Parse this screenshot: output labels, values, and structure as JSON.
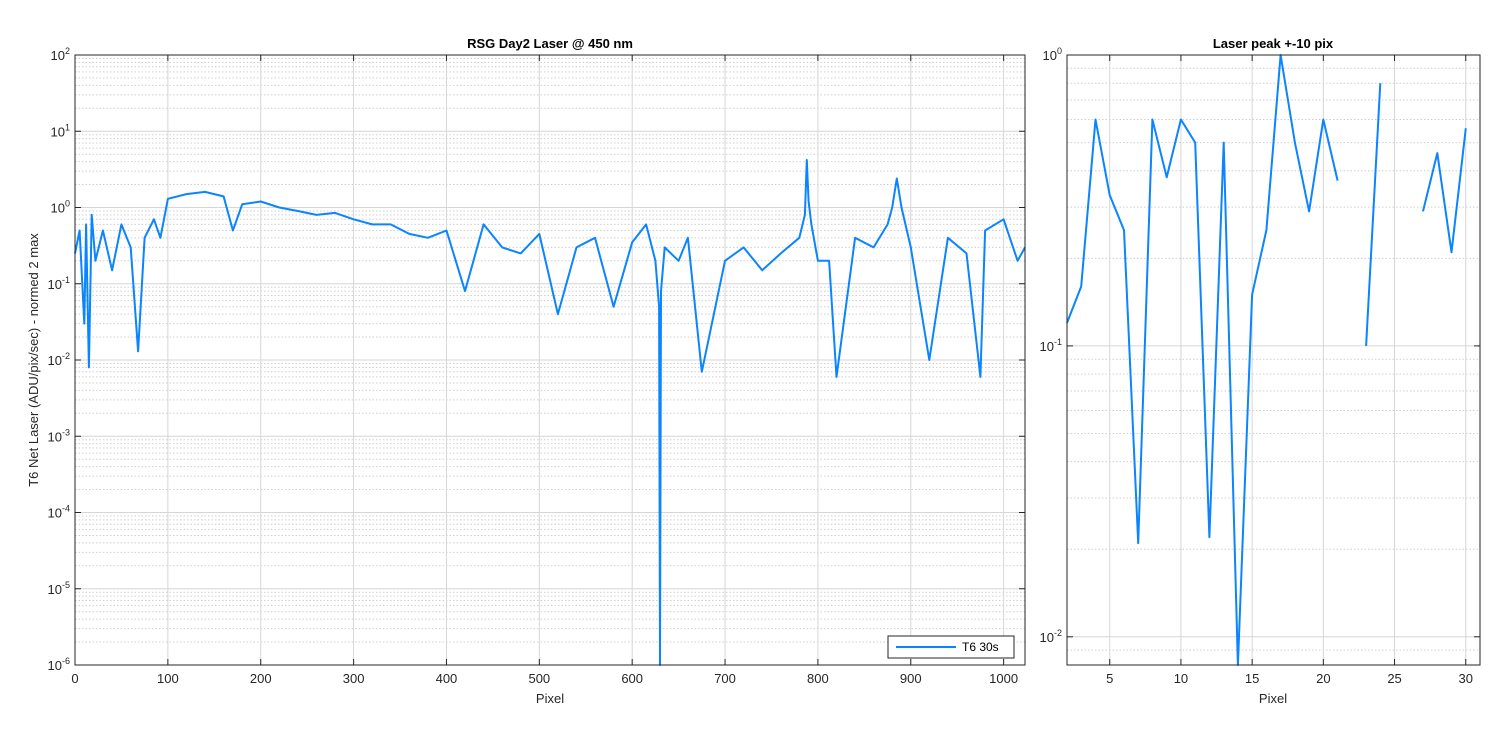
{
  "colors": {
    "series": "#0A84FF",
    "axis": "#262626",
    "grid_major": "#d6d6d6",
    "grid_minor": "#cfcfcf",
    "background": "#ffffff"
  },
  "chart_data": [
    {
      "type": "line",
      "title": "RSG  Day2 Laser @ 450 nm",
      "xlabel": "Pixel",
      "ylabel": "T6 Net Laser (ADU/pix/sec) - normed 2 max",
      "xlim": [
        0,
        1023
      ],
      "ylim": [
        1e-06,
        100
      ],
      "yscale": "log",
      "grid": true,
      "minor_grid": true,
      "xticks": [
        0,
        100,
        200,
        300,
        400,
        500,
        600,
        700,
        800,
        900,
        1000
      ],
      "yticks": [
        {
          "base": "10",
          "exp": "-6",
          "value": 1e-06
        },
        {
          "base": "10",
          "exp": "-5",
          "value": 1e-05
        },
        {
          "base": "10",
          "exp": "-4",
          "value": 0.0001
        },
        {
          "base": "10",
          "exp": "-3",
          "value": 0.001
        },
        {
          "base": "10",
          "exp": "-2",
          "value": 0.01
        },
        {
          "base": "10",
          "exp": "-1",
          "value": 0.1
        },
        {
          "base": "10",
          "exp": "0",
          "value": 1
        },
        {
          "base": "10",
          "exp": "1",
          "value": 10
        },
        {
          "base": "10",
          "exp": "2",
          "value": 100
        }
      ],
      "legend": {
        "entries": [
          "T6 30s"
        ],
        "location": "bottom-right"
      },
      "series": [
        {
          "name": "T6 30s",
          "x": [
            0,
            5,
            10,
            12,
            15,
            18,
            22,
            30,
            40,
            50,
            60,
            68,
            75,
            85,
            92,
            100,
            120,
            140,
            160,
            170,
            180,
            200,
            220,
            240,
            260,
            280,
            300,
            320,
            340,
            360,
            380,
            400,
            420,
            440,
            460,
            480,
            500,
            520,
            540,
            560,
            580,
            600,
            615,
            625,
            629,
            630,
            631,
            635,
            650,
            660,
            675,
            700,
            720,
            740,
            760,
            780,
            786,
            788,
            790,
            793,
            800,
            812,
            820,
            840,
            860,
            875,
            880,
            885,
            890,
            900,
            920,
            940,
            960,
            975,
            980,
            1000,
            1015,
            1023
          ],
          "y": [
            0.25,
            0.5,
            0.03,
            0.6,
            0.008,
            0.8,
            0.2,
            0.5,
            0.15,
            0.6,
            0.3,
            0.013,
            0.4,
            0.7,
            0.4,
            1.3,
            1.5,
            1.6,
            1.4,
            0.5,
            1.1,
            1.2,
            1.0,
            0.9,
            0.8,
            0.85,
            0.7,
            0.6,
            0.6,
            0.45,
            0.4,
            0.5,
            0.08,
            0.6,
            0.3,
            0.25,
            0.45,
            0.04,
            0.3,
            0.4,
            0.05,
            0.35,
            0.6,
            0.2,
            0.05,
            1e-06,
            0.08,
            0.3,
            0.2,
            0.4,
            0.007,
            0.2,
            0.3,
            0.15,
            0.25,
            0.4,
            0.8,
            4.2,
            1.2,
            0.6,
            0.2,
            0.2,
            0.006,
            0.4,
            0.3,
            0.6,
            1.0,
            2.4,
            1.0,
            0.3,
            0.01,
            0.4,
            0.25,
            0.006,
            0.5,
            0.7,
            0.2,
            0.3
          ]
        }
      ]
    },
    {
      "type": "line",
      "title": "Laser peak +-10 pix",
      "xlabel": "Pixel",
      "ylabel": "",
      "xlim": [
        2,
        31
      ],
      "ylim": [
        0.008,
        1
      ],
      "yscale": "log",
      "grid": true,
      "minor_grid": true,
      "xticks": [
        5,
        10,
        15,
        20,
        25,
        30
      ],
      "yticks": [
        {
          "base": "10",
          "exp": "-2",
          "value": 0.01
        },
        {
          "base": "10",
          "exp": "-1",
          "value": 0.1
        },
        {
          "base": "10",
          "exp": "0",
          "value": 1
        }
      ],
      "series": [
        {
          "name": "",
          "x": [
            2,
            3,
            4,
            5,
            6,
            7,
            8,
            9,
            10,
            11,
            12,
            13,
            14,
            15,
            16,
            17,
            18,
            19,
            20,
            21,
            22,
            23,
            24,
            25,
            26,
            27,
            28,
            29,
            30
          ],
          "y": [
            0.12,
            0.16,
            0.6,
            0.33,
            0.25,
            0.021,
            0.6,
            0.38,
            0.6,
            0.5,
            0.022,
            0.5,
            0.008,
            0.15,
            0.25,
            1.0,
            0.5,
            0.29,
            0.6,
            0.37,
            null,
            0.1,
            0.8,
            null,
            null,
            0.29,
            0.46,
            0.21,
            0.56
          ]
        }
      ]
    }
  ]
}
